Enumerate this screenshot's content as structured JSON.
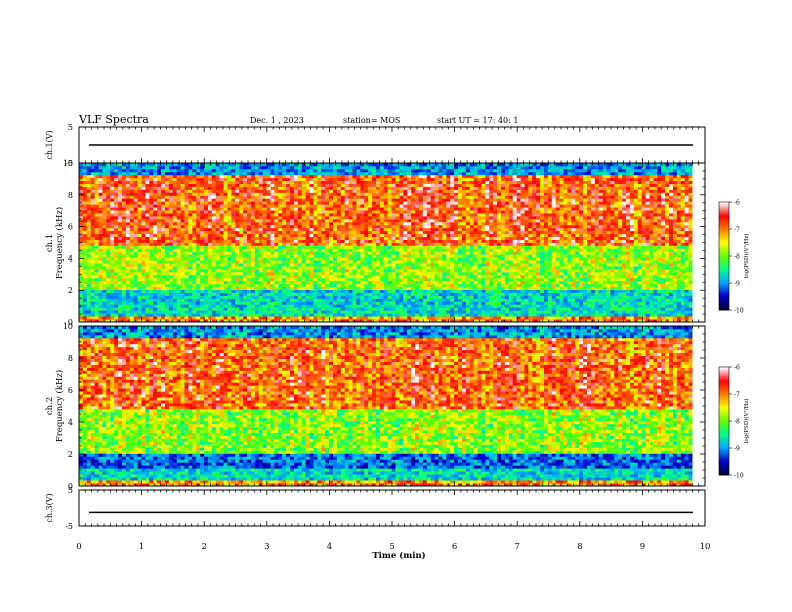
{
  "header": {
    "title": "VLF Spectra",
    "date": "Dec. 1 , 2023",
    "station": "station= MOS",
    "start": "start  UT =   17: 40: 1"
  },
  "chart_data": [
    {
      "type": "line",
      "panel": "ch1-voltage",
      "ylabel": "ch.1(V)",
      "ylim": [
        -5,
        5
      ],
      "yticks": [
        "5",
        "-5"
      ],
      "x": [
        0,
        10
      ],
      "values": [
        0,
        0
      ]
    },
    {
      "type": "heatmap",
      "panel": "ch1-spectrogram",
      "ylabel": "ch.1\nFrequency (kHz)",
      "ylim": [
        0,
        10
      ],
      "yticks": [
        "0",
        "2",
        "4",
        "6",
        "8",
        "10"
      ],
      "xlim": [
        0,
        9.8
      ],
      "colorbar": {
        "label": "log(PSD)(V²/Hz)",
        "range": [
          -10,
          -6
        ],
        "ticks": [
          "-6",
          "-7",
          "-8",
          "-9",
          "-10"
        ]
      }
    },
    {
      "type": "heatmap",
      "panel": "ch2-spectrogram",
      "ylabel": "ch.2\nFrequency (kHz)",
      "ylim": [
        0,
        10
      ],
      "yticks": [
        "0",
        "2",
        "4",
        "6",
        "8",
        "10"
      ],
      "xlim": [
        0,
        9.8
      ],
      "colorbar": {
        "label": "log(PSD)(V²/Hz)",
        "range": [
          -10,
          -6
        ],
        "ticks": [
          "-6",
          "-7",
          "-8",
          "-9",
          "-10"
        ]
      }
    },
    {
      "type": "line",
      "panel": "ch3-voltage",
      "ylabel": "ch.3(V)",
      "ylim": [
        -5,
        5
      ],
      "yticks": [
        "5",
        "-5"
      ],
      "x": [
        0,
        10
      ],
      "values": [
        -1.2,
        -1.2
      ]
    }
  ],
  "xaxis": {
    "label": "Time  (min)",
    "range": [
      0,
      10
    ],
    "ticks": [
      "0",
      "1",
      "2",
      "3",
      "4",
      "5",
      "6",
      "7",
      "8",
      "9",
      "10"
    ]
  },
  "colors": {
    "scale": [
      "#000040",
      "#0000d0",
      "#00a8ff",
      "#00ff88",
      "#60ff00",
      "#ffff00",
      "#ff8000",
      "#ff0000",
      "#ffffff"
    ]
  }
}
